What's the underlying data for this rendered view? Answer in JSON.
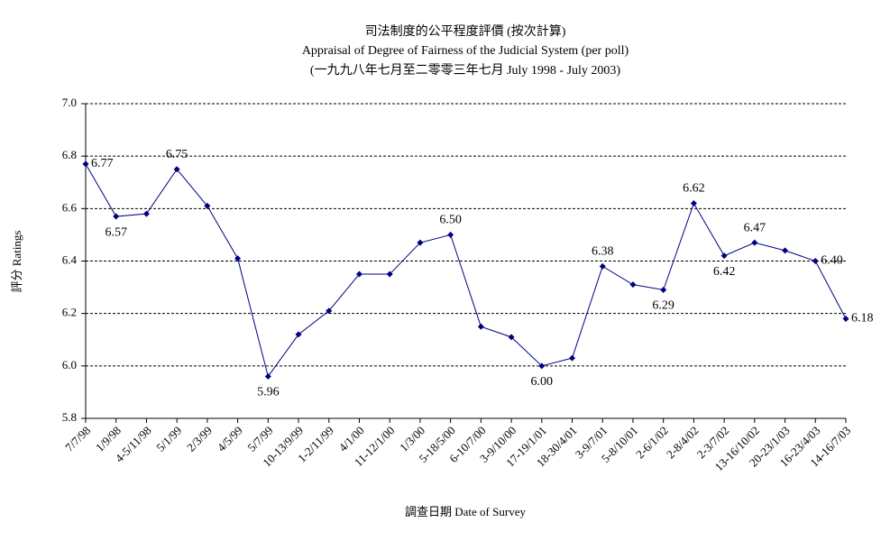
{
  "chart_data": {
    "type": "line",
    "title": "司法制度的公平程度評價 (按次計算)",
    "subtitle": "Appraisal of Degree of Fairness of the Judicial System (per poll)",
    "subtitle2": "(一九九八年七月至二零零三年七月 July 1998 - July 2003)",
    "y_label": "評分 Ratings",
    "x_label": "調查日期 Date of Survey",
    "categories": [
      "7/7/98",
      "1/9/98",
      "4-5/11/98",
      "5/1/99",
      "2/3/99",
      "4/5/99",
      "5/7/99",
      "10-13/9/99",
      "1-2/11/99",
      "4/1/00",
      "11-12/1/00",
      "1/3/00",
      "5-18/5/00",
      "6-10/7/00",
      "3-9/10/00",
      "17-19/1/01",
      "18-30/4/01",
      "3-9/7/01",
      "5-8/10/01",
      "2-6/1/02",
      "2-8/4/02",
      "2-3/7/02",
      "13-16/10/02",
      "20-23/1/03",
      "16-23/4/03",
      "14-16/7/03"
    ],
    "series": [
      {
        "name": "Ratings",
        "color": "#000080",
        "values": [
          6.77,
          6.57,
          6.58,
          6.75,
          6.61,
          6.41,
          5.96,
          6.12,
          6.21,
          6.35,
          6.35,
          6.47,
          6.5,
          6.15,
          6.11,
          6.0,
          6.03,
          6.38,
          6.31,
          6.29,
          6.62,
          6.42,
          6.47,
          6.44,
          6.4,
          6.18
        ],
        "value_labels": [
          "6.77",
          "6.57",
          null,
          "6.75",
          null,
          null,
          "5.96",
          null,
          null,
          null,
          null,
          null,
          "6.50",
          null,
          null,
          "6.00",
          null,
          "6.38",
          null,
          "6.29",
          "6.62",
          "6.42",
          "6.47",
          null,
          "6.40",
          "6.18"
        ]
      }
    ],
    "ylim": [
      5.8,
      7.0
    ],
    "yticks": [
      {
        "value": 5.8,
        "label": "5.8"
      },
      {
        "value": 6.0,
        "label": "6.0"
      },
      {
        "value": 6.2,
        "label": "6.2"
      },
      {
        "value": 6.4,
        "label": "6.4"
      },
      {
        "value": 6.6,
        "label": "6.6"
      },
      {
        "value": 6.8,
        "label": "6.8"
      },
      {
        "value": 7.0,
        "label": "7.0"
      }
    ],
    "grid": true
  }
}
